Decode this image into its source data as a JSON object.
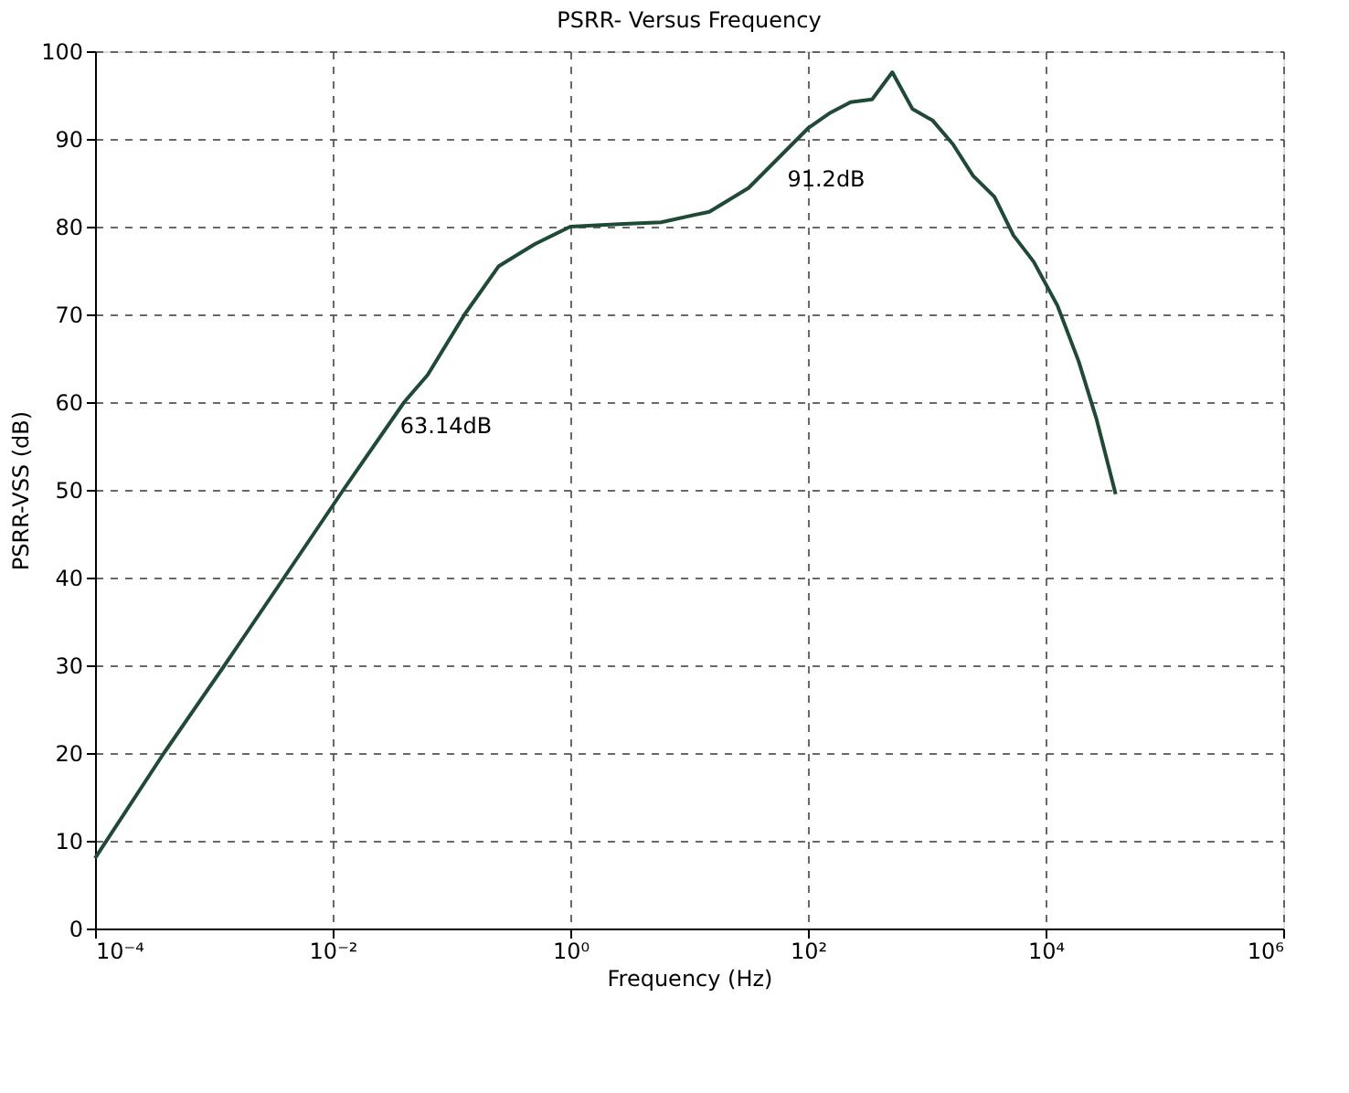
{
  "chart_data": {
    "type": "line",
    "title": "PSRR- Versus Frequency",
    "xlabel": "Frequency (Hz)",
    "ylabel": "PSRR-VSS (dB)",
    "x": [
      0.0001,
      0.00038,
      0.00123,
      0.0039,
      0.0123,
      0.04,
      0.063,
      0.129,
      0.25,
      0.5,
      1,
      2.8,
      5.8,
      14.8,
      31.6,
      100,
      155,
      229,
      347,
      513,
      759,
      1122,
      1660,
      2455,
      3715,
      5370,
      7943,
      12590,
      19050,
      26920,
      38900
    ],
    "series": [
      {
        "color": "#1f4a36",
        "values": [
          8,
          20,
          30,
          40,
          50,
          60,
          63.1,
          70,
          75.5,
          78,
          80,
          80.3,
          80.5,
          81.7,
          84.4,
          91.2,
          93,
          94.2,
          94.5,
          97.6,
          93.4,
          92.1,
          89.4,
          85.8,
          83.4,
          79,
          76,
          71,
          64.6,
          58,
          49.5
        ]
      }
    ],
    "log": "x",
    "xlim": [
      0.0001,
      1000000
    ],
    "ylim": [
      0,
      100
    ],
    "xticks": [
      {
        "value": 0.0001,
        "label": "10⁻⁴"
      },
      {
        "value": 0.01,
        "label": "10⁻²"
      },
      {
        "value": 1,
        "label": "10⁰"
      },
      {
        "value": 100,
        "label": "10²"
      },
      {
        "value": 10000,
        "label": "10⁴"
      },
      {
        "value": 1000000,
        "label": "10⁶"
      }
    ],
    "yticks": [
      0,
      10,
      20,
      30,
      40,
      50,
      60,
      70,
      80,
      90,
      100
    ],
    "grid": true,
    "line_style": "solid",
    "marker": "none",
    "annotations": [
      {
        "text": "63.14dB",
        "x": 0.063,
        "y": 63.14
      },
      {
        "text": "91.2dB",
        "x": 100,
        "y": 91.2
      }
    ]
  }
}
